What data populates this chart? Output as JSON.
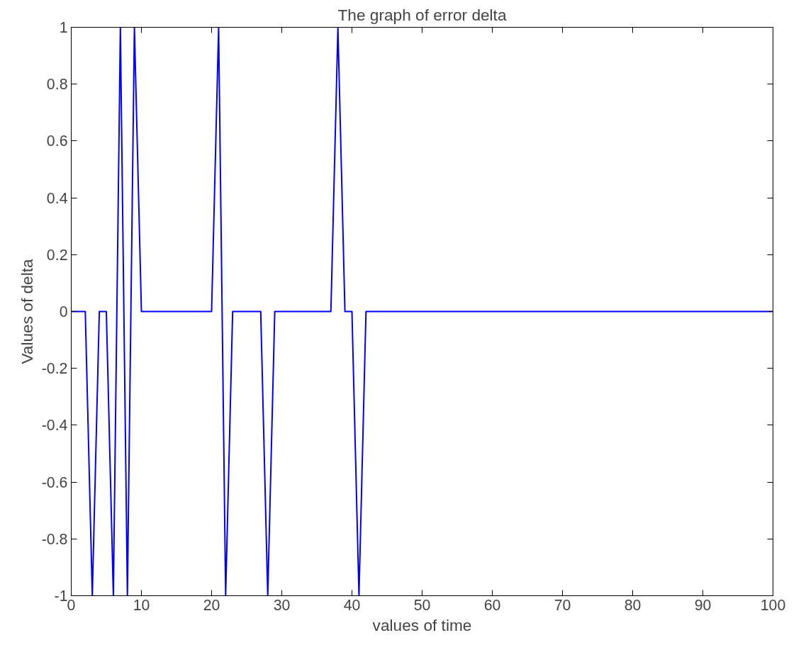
{
  "chart_data": {
    "type": "line",
    "title": "The graph of error delta",
    "xlabel": "values of time",
    "ylabel": "Values of delta",
    "x": [
      0,
      2,
      3,
      4,
      5,
      6,
      7,
      8,
      9,
      10,
      20,
      21,
      22,
      23,
      27,
      28,
      29,
      37,
      38,
      39,
      40,
      41,
      42,
      100
    ],
    "series": [
      {
        "color": "#0000ff",
        "values": [
          0,
          0,
          -1,
          0,
          0,
          -1,
          1,
          -1,
          1,
          0,
          0,
          1,
          -1,
          0,
          0,
          -1,
          0,
          0,
          1,
          0,
          0,
          -1,
          0,
          0
        ]
      }
    ],
    "xlim": [
      0,
      100
    ],
    "ylim": [
      -1,
      1
    ],
    "xticks": [
      0,
      10,
      20,
      30,
      40,
      50,
      60,
      70,
      80,
      90,
      100
    ],
    "yticks": [
      -1,
      -0.8,
      -0.6,
      -0.4,
      -0.2,
      0,
      0.2,
      0.4,
      0.6,
      0.8,
      1
    ],
    "grid": false,
    "marker": "none",
    "line_style": "solid"
  }
}
